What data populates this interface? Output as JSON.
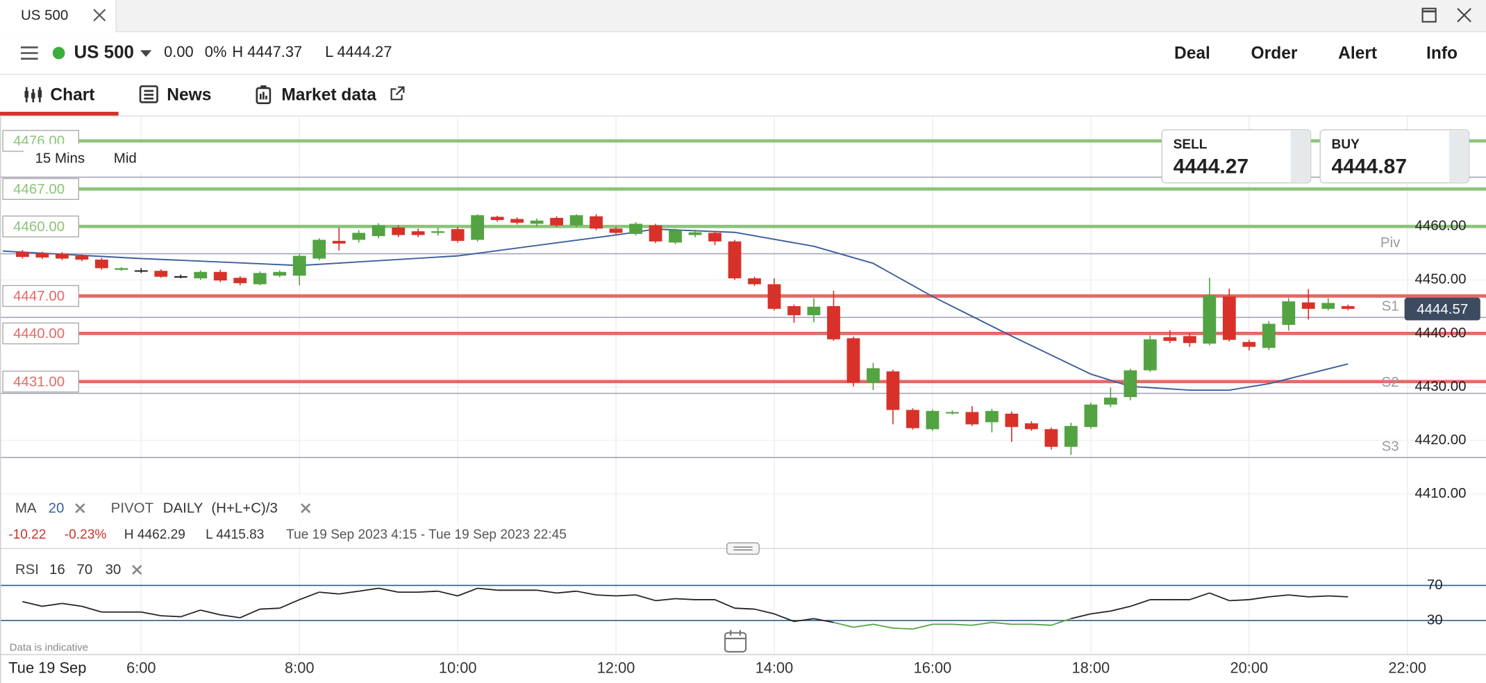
{
  "window": {
    "tab": "US 500"
  },
  "header": {
    "instrument": "US 500",
    "change": "0.00",
    "change_pct": "0%",
    "high": "H 4447.37",
    "low": "L 4444.27",
    "actions": [
      "Deal",
      "Order",
      "Alert",
      "Info"
    ]
  },
  "tabs": [
    "Chart",
    "News",
    "Market data"
  ],
  "chart_settings": {
    "timeframe": "15 Mins",
    "price_type": "Mid"
  },
  "quote": {
    "sell_label": "SELL",
    "sell": "4444.27",
    "buy_label": "BUY",
    "buy": "4444.87"
  },
  "indicators": {
    "ma_label": "MA",
    "ma_period": 20,
    "pivot_label": "PIVOT",
    "pivot_period": "DAILY",
    "pivot_formula": "(H+L+C)/3"
  },
  "stats": {
    "change": "-10.22",
    "change_pct": "-0.23%",
    "high": "H 4462.29",
    "low": "L 4415.83",
    "range": "Tue 19 Sep 2023 4:15 - Tue 19 Sep 2023 22:45"
  },
  "footer": {
    "note": "Data is indicative",
    "date": "Tue 19 Sep"
  },
  "chart_data": {
    "type": "candlestick",
    "x": [
      4.5,
      4.75,
      5,
      5.25,
      5.5,
      5.75,
      6,
      6.25,
      6.5,
      6.75,
      7,
      7.25,
      7.5,
      7.75,
      8,
      8.25,
      8.5,
      8.75,
      9,
      9.25,
      9.5,
      9.75,
      10,
      10.25,
      10.5,
      10.75,
      11,
      11.25,
      11.5,
      11.75,
      12,
      12.25,
      12.5,
      12.75,
      13,
      13.25,
      13.5,
      13.75,
      14,
      14.25,
      14.5,
      14.75,
      15,
      15.25,
      15.5,
      15.75,
      16,
      16.25,
      16.5,
      16.75,
      17,
      17.25,
      17.5,
      17.75,
      18,
      18.25,
      18.5,
      18.75,
      19,
      19.25,
      19.5,
      19.75,
      20,
      20.25,
      20.5,
      20.75,
      21,
      21.25
    ],
    "open": [
      4455.2,
      4455.0,
      4454.9,
      4454.5,
      4453.8,
      4451.9,
      4451.8,
      4451.7,
      4450.7,
      4450.3,
      4451.5,
      4450.4,
      4449.2,
      4450.8,
      4450.8,
      4454.0,
      4457.3,
      4457.5,
      4458.2,
      4459.8,
      4459.1,
      4458.8,
      4459.5,
      4457.5,
      4461.8,
      4461.4,
      4460.5,
      4461.6,
      4460.2,
      4461.9,
      4459.6,
      4458.6,
      4460.2,
      4457.0,
      4458.4,
      4458.8,
      4457.2,
      4450.3,
      4449.2,
      4445.1,
      4443.4,
      4445.1,
      4439.1,
      4430.8,
      4432.9,
      4425.7,
      4422.1,
      4425.1,
      4425.3,
      4423.4,
      4425.0,
      4423.2,
      4422.1,
      4418.8,
      4422.5,
      4426.7,
      4428.1,
      4433.1,
      4439.3,
      4439.5,
      4438.1,
      4446.9,
      4438.4,
      4437.3,
      4441.6,
      4445.8,
      4444.6,
      4445.1
    ],
    "high": [
      4455.6,
      4455.3,
      4455.2,
      4454.8,
      4454.1,
      4452.4,
      4452.2,
      4452.0,
      4451.0,
      4451.8,
      4451.9,
      4450.7,
      4451.6,
      4451.8,
      4454.8,
      4457.8,
      4459.8,
      4459.3,
      4460.6,
      4460.2,
      4459.6,
      4459.8,
      4459.9,
      4462.3,
      4462.0,
      4461.7,
      4461.5,
      4461.9,
      4462.3,
      4462.3,
      4459.9,
      4460.8,
      4460.5,
      4459.6,
      4459.4,
      4459.2,
      4457.5,
      4450.6,
      4450.3,
      4445.4,
      4446.6,
      4448.0,
      4439.4,
      4434.5,
      4433.2,
      4426.0,
      4425.8,
      4425.6,
      4426.4,
      4425.9,
      4425.4,
      4423.6,
      4422.4,
      4423.3,
      4427.1,
      4429.9,
      4433.4,
      4439.6,
      4440.6,
      4440.1,
      4450.4,
      4448.4,
      4438.8,
      4442.3,
      4446.6,
      4448.3,
      4446.6,
      4445.4
    ],
    "low": [
      4454.0,
      4453.9,
      4453.7,
      4453.5,
      4451.9,
      4451.7,
      4451.3,
      4450.4,
      4450.3,
      4450.0,
      4449.6,
      4449.0,
      4449.0,
      4450.5,
      4449.0,
      4453.7,
      4455.5,
      4457.0,
      4457.8,
      4458.0,
      4458.0,
      4458.3,
      4457.0,
      4457.2,
      4460.9,
      4460.4,
      4460.0,
      4459.9,
      4459.9,
      4459.3,
      4458.5,
      4458.3,
      4456.9,
      4456.7,
      4458.0,
      4456.5,
      4450.0,
      4448.9,
      4444.3,
      4442.0,
      4442.1,
      4438.6,
      4430.1,
      4429.4,
      4423.0,
      4422.0,
      4421.8,
      4424.8,
      4422.7,
      4421.5,
      4419.7,
      4421.8,
      4418.3,
      4417.3,
      4422.2,
      4426.2,
      4427.5,
      4432.8,
      4438.2,
      4437.5,
      4437.8,
      4438.5,
      4436.8,
      4436.9,
      4440.5,
      4442.6,
      4444.3,
      4444.3
    ],
    "close": [
      4454.3,
      4454.2,
      4454.0,
      4453.8,
      4452.2,
      4452.2,
      4451.8,
      4450.6,
      4450.7,
      4451.5,
      4449.9,
      4449.4,
      4451.3,
      4451.5,
      4454.5,
      4457.5,
      4456.8,
      4458.8,
      4460.2,
      4458.4,
      4458.4,
      4459.1,
      4457.3,
      4462.1,
      4461.2,
      4460.7,
      4461.1,
      4460.2,
      4462.1,
      4459.6,
      4458.8,
      4460.5,
      4457.2,
      4459.3,
      4458.9,
      4457.2,
      4450.3,
      4449.2,
      4444.6,
      4443.4,
      4445.0,
      4438.9,
      4430.8,
      4433.5,
      4425.7,
      4422.3,
      4425.5,
      4425.3,
      4423.0,
      4425.5,
      4422.5,
      4422.1,
      4418.8,
      4422.7,
      4426.7,
      4428.0,
      4433.1,
      4438.9,
      4438.6,
      4438.2,
      4447.1,
      4438.8,
      4437.5,
      4441.8,
      4446.0,
      4444.6,
      4445.7,
      4444.6
    ],
    "up_color": "#53a342",
    "down_color": "#d83129",
    "flat_color": "#222222",
    "ma": {
      "color": "#3b5f9c",
      "x": [
        4.25,
        6,
        8,
        10,
        12,
        12.5,
        13.5,
        14.5,
        15.25,
        16,
        17,
        18,
        18.5,
        19.25,
        19.75,
        20.25,
        21.25
      ],
      "values": [
        4455.4,
        4454.0,
        4452.7,
        4454.5,
        4458.4,
        4459.5,
        4458.9,
        4456.3,
        4453.1,
        4446.9,
        4439.5,
        4432.4,
        4430.1,
        4429.4,
        4429.4,
        4430.6,
        4434.3
      ]
    },
    "xlim": [
      4.216,
      22.994
    ],
    "xticks": [
      {
        "value": 6,
        "label": "6:00"
      },
      {
        "value": 8,
        "label": "8:00"
      },
      {
        "value": 10,
        "label": "10:00"
      },
      {
        "value": 12,
        "label": "12:00"
      },
      {
        "value": 14,
        "label": "14:00"
      },
      {
        "value": 16,
        "label": "16:00"
      },
      {
        "value": 18,
        "label": "18:00"
      },
      {
        "value": 20,
        "label": "20:00"
      },
      {
        "value": 22,
        "label": "22:00"
      }
    ],
    "ylim": [
      4400.5,
      4480.2
    ],
    "yticks": [
      {
        "value": 4410,
        "label": "4410.00"
      },
      {
        "value": 4420,
        "label": "4420.00"
      },
      {
        "value": 4430,
        "label": "4430.00"
      },
      {
        "value": 4440,
        "label": "4440.00"
      },
      {
        "value": 4450,
        "label": "4450.00"
      },
      {
        "value": 4460,
        "label": "4460.00"
      }
    ],
    "grid": true,
    "levels": [
      {
        "value": 4476,
        "label": "4476.00",
        "color": "#8cc47a"
      },
      {
        "value": 4467,
        "label": "4467.00",
        "color": "#8cc47a"
      },
      {
        "value": 4460,
        "label": "4460.00",
        "color": "#8cc47a"
      },
      {
        "value": 4447,
        "label": "4447.00",
        "color": "#e36a66"
      },
      {
        "value": 4440,
        "label": "4440.00",
        "color": "#e36a66"
      },
      {
        "value": 4431,
        "label": "4431.00",
        "color": "#e36a66"
      }
    ],
    "pivots": [
      {
        "label": null,
        "value": 4469.2
      },
      {
        "label": "Piv",
        "value": 4454.9
      },
      {
        "label": "S1",
        "value": 4443.0
      },
      {
        "label": "S2",
        "value": 4428.8
      },
      {
        "label": "S3",
        "value": 4416.8
      }
    ],
    "last_price": {
      "value": 4444.57,
      "label": "4444.57"
    },
    "rsi": {
      "label": "RSI",
      "period": 16,
      "upper": 70,
      "lower": 30,
      "ylim": [
        -7.8,
        100.3
      ],
      "yticks": [
        30,
        70
      ],
      "line_color": "#222222",
      "oversold_color": "#53a342",
      "level_color": "#2e5b8c",
      "values": [
        51.6,
        46.2,
        49.5,
        46.2,
        39.7,
        39.7,
        39.7,
        35.4,
        34.3,
        41.9,
        36.5,
        33.2,
        43.0,
        44.1,
        53.8,
        62.4,
        60.3,
        63.5,
        66.8,
        62.4,
        62.4,
        63.5,
        58.1,
        66.8,
        64.6,
        64.6,
        64.6,
        61.4,
        63.5,
        59.2,
        58.1,
        59.2,
        52.7,
        54.9,
        53.8,
        53.8,
        44.1,
        43.0,
        37.6,
        28.9,
        32.2,
        27.8,
        22.4,
        25.7,
        21.4,
        20.3,
        25.7,
        25.7,
        24.6,
        27.8,
        25.7,
        25.7,
        24.6,
        32.2,
        37.6,
        40.8,
        46.2,
        53.8,
        53.8,
        53.8,
        61.4,
        52.7,
        53.8,
        57.0,
        59.2,
        57.0,
        58.1,
        57.0
      ]
    }
  }
}
